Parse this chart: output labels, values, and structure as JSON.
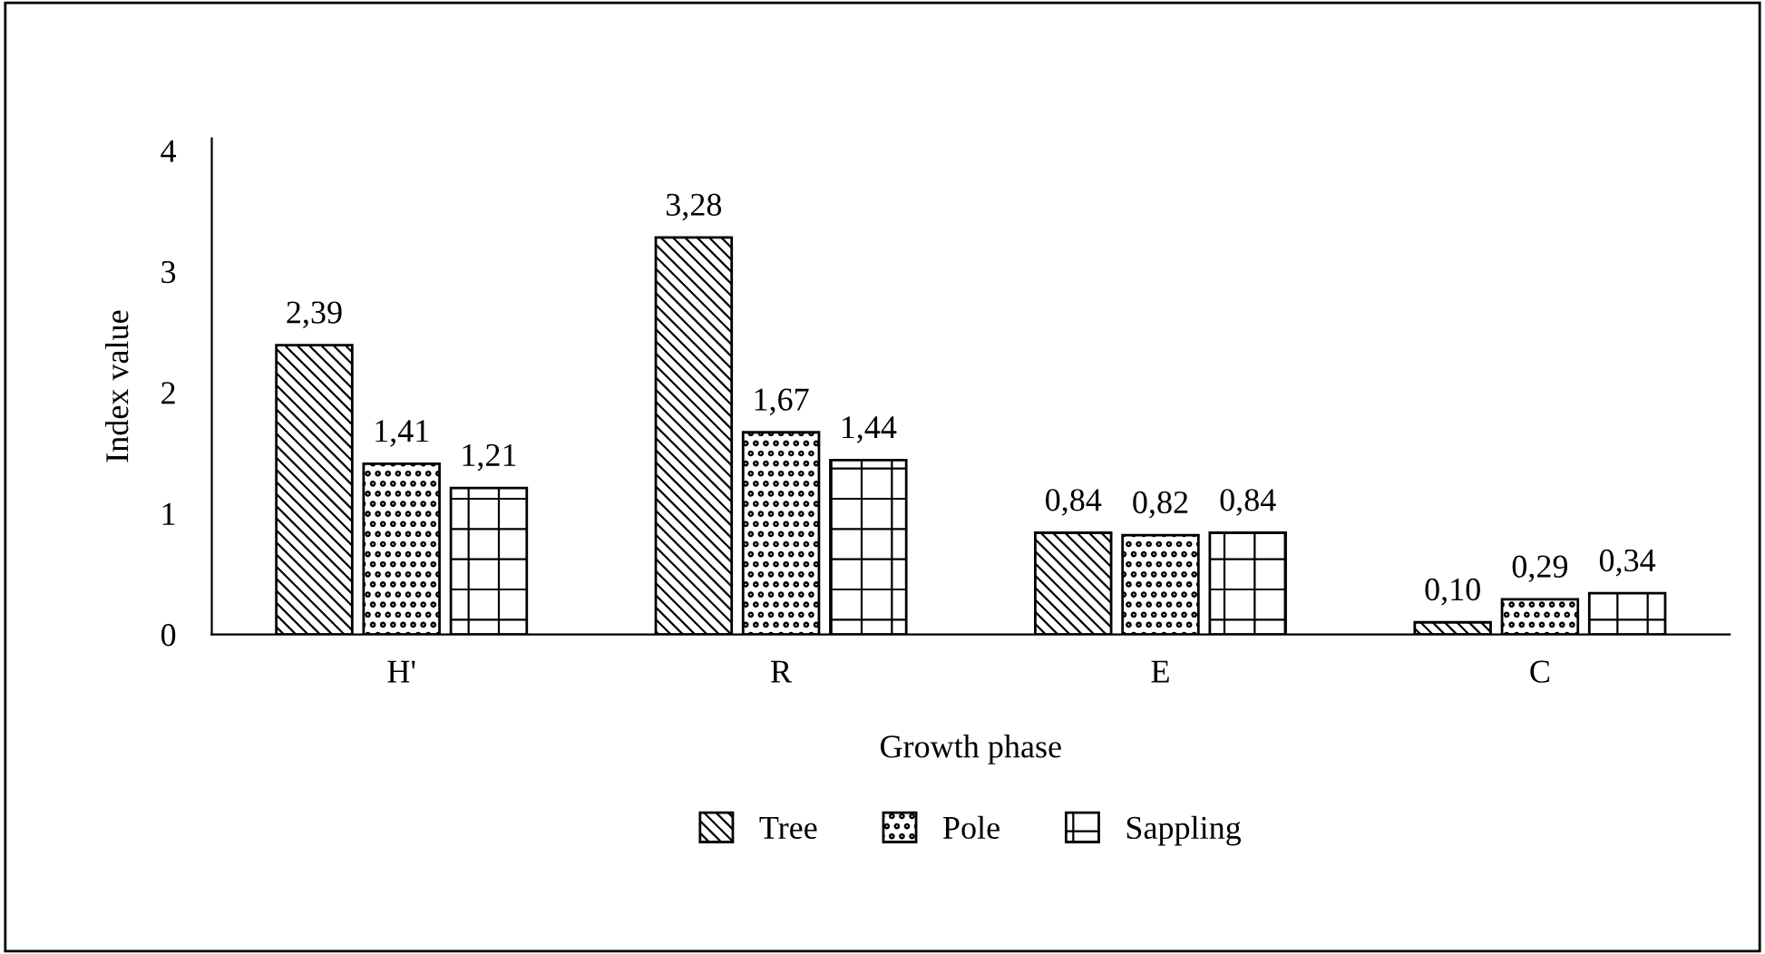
{
  "chart_data": {
    "type": "bar",
    "xlabel": "Growth phase",
    "ylabel": "Index value",
    "categories": [
      "H'",
      "R",
      "E",
      "C"
    ],
    "series": [
      {
        "name": "Tree",
        "color": "#000000",
        "values": [
          2.39,
          3.28,
          0.84,
          0.1
        ],
        "value_labels": [
          "2,39",
          "3,28",
          "0,84",
          "0,10"
        ]
      },
      {
        "name": "Pole",
        "color": "#000000",
        "values": [
          1.41,
          1.67,
          0.82,
          0.29
        ],
        "value_labels": [
          "1,41",
          "1,67",
          "0,82",
          "0,29"
        ]
      },
      {
        "name": "Sappling",
        "color": "#000000",
        "values": [
          1.21,
          1.44,
          0.84,
          0.34
        ],
        "value_labels": [
          "1,21",
          "1,44",
          "0,84",
          "0,34"
        ]
      }
    ],
    "ylim": [
      0,
      4.1
    ],
    "yticks": [
      0,
      1,
      2,
      3,
      4
    ],
    "grid": false,
    "legend": "bottom"
  }
}
